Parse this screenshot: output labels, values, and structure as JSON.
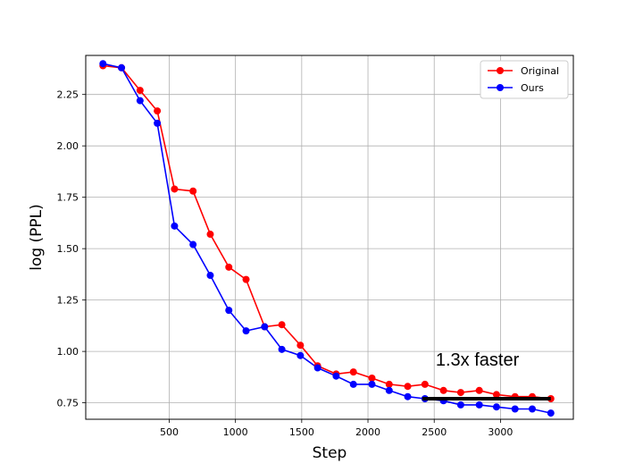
{
  "chart_data": {
    "type": "line",
    "title": "",
    "xlabel": "Step",
    "ylabel": "log (PPL)",
    "xlim": [
      -130,
      3550
    ],
    "ylim": [
      0.67,
      2.44
    ],
    "xticks": [
      500,
      1000,
      1500,
      2000,
      2500,
      3000
    ],
    "xtick_labels": [
      "500",
      "1000",
      "1500",
      "2000",
      "2500",
      "3000"
    ],
    "yticks": [
      0.75,
      1.0,
      1.25,
      1.5,
      1.75,
      2.0,
      2.25
    ],
    "ytick_labels": [
      "0.75",
      "1.00",
      "1.25",
      "1.50",
      "1.75",
      "2.00",
      "2.25"
    ],
    "grid": true,
    "legend_position": "top-right",
    "x": [
      0,
      140,
      280,
      410,
      540,
      680,
      810,
      950,
      1080,
      1220,
      1350,
      1490,
      1620,
      1760,
      1890,
      2030,
      2160,
      2300,
      2430,
      2570,
      2700,
      2840,
      2970,
      3110,
      3240,
      3380
    ],
    "series": [
      {
        "name": "Original",
        "color": "#ff0000",
        "values": [
          2.39,
          2.38,
          2.27,
          2.17,
          1.79,
          1.78,
          1.57,
          1.41,
          1.35,
          1.12,
          1.13,
          1.03,
          0.93,
          0.89,
          0.9,
          0.87,
          0.84,
          0.83,
          0.84,
          0.81,
          0.8,
          0.81,
          0.79,
          0.78,
          0.78,
          0.77
        ]
      },
      {
        "name": "Ours",
        "color": "#0000ff",
        "values": [
          2.4,
          2.38,
          2.22,
          2.11,
          1.61,
          1.52,
          1.37,
          1.2,
          1.1,
          1.12,
          1.01,
          0.98,
          0.92,
          0.88,
          0.84,
          0.84,
          0.81,
          0.78,
          0.77,
          0.76,
          0.74,
          0.74,
          0.73,
          0.72,
          0.72,
          0.7
        ]
      }
    ],
    "annotation": {
      "text": "1.3x faster",
      "line_x": [
        2410,
        3380
      ],
      "line_y": 0.77
    }
  }
}
